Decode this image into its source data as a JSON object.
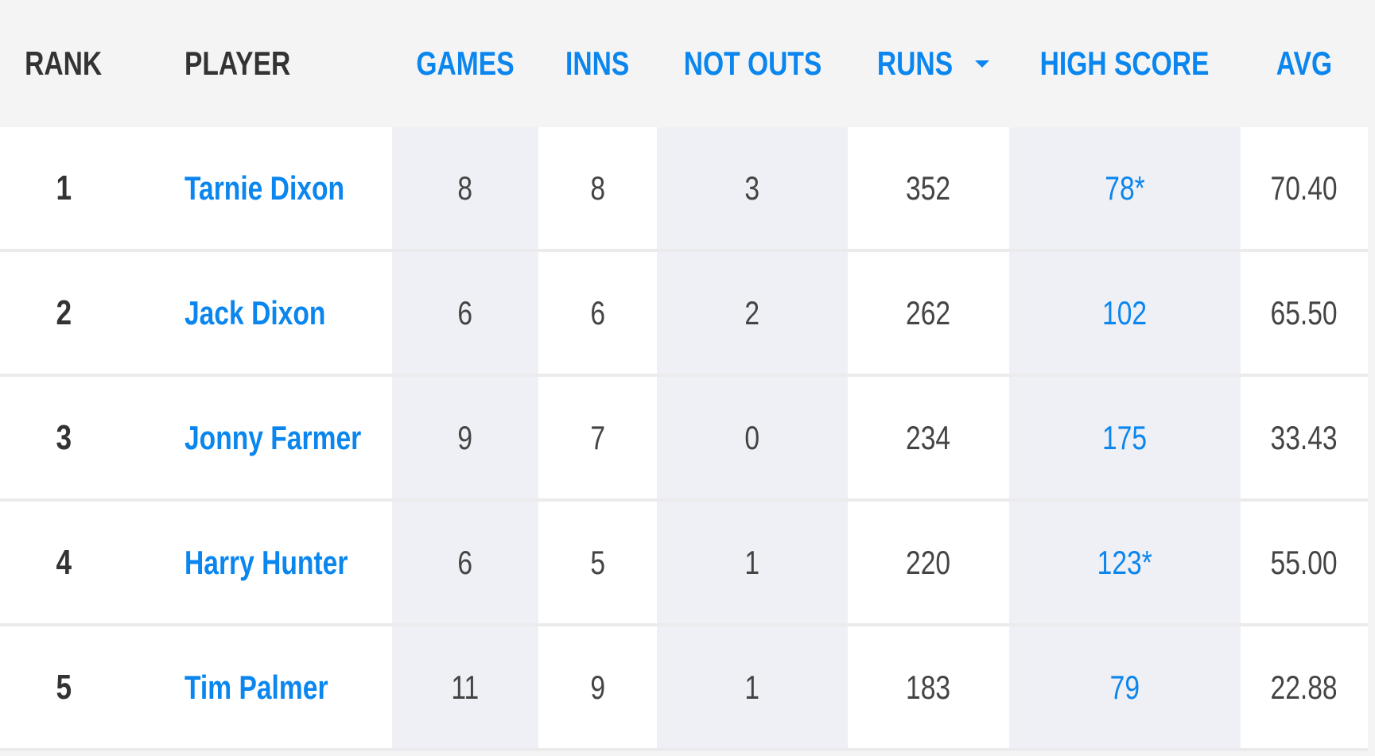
{
  "columns": {
    "rank": "RANK",
    "player": "PLAYER",
    "games": "GAMES",
    "inns": "INNS",
    "not_outs": "NOT OUTS",
    "runs": "RUNS",
    "high_score": "HIGH SCORE",
    "avg": "AVG"
  },
  "sort": {
    "column": "runs",
    "direction": "descending",
    "icon": "caret-down-icon"
  },
  "colors": {
    "link": "#0a86ee",
    "text": "#333333",
    "header_bg": "#f4f4f5",
    "shaded_col": "#eff0f5"
  },
  "rows": [
    {
      "rank": "1",
      "player": "Tarnie Dixon",
      "games": "8",
      "inns": "8",
      "not_outs": "3",
      "runs": "352",
      "high_score": "78*",
      "avg": "70.40"
    },
    {
      "rank": "2",
      "player": "Jack Dixon",
      "games": "6",
      "inns": "6",
      "not_outs": "2",
      "runs": "262",
      "high_score": "102",
      "avg": "65.50"
    },
    {
      "rank": "3",
      "player": "Jonny Farmer",
      "games": "9",
      "inns": "7",
      "not_outs": "0",
      "runs": "234",
      "high_score": "175",
      "avg": "33.43"
    },
    {
      "rank": "4",
      "player": "Harry Hunter",
      "games": "6",
      "inns": "5",
      "not_outs": "1",
      "runs": "220",
      "high_score": "123*",
      "avg": "55.00"
    },
    {
      "rank": "5",
      "player": "Tim Palmer",
      "games": "11",
      "inns": "9",
      "not_outs": "1",
      "runs": "183",
      "high_score": "79",
      "avg": "22.88"
    }
  ]
}
